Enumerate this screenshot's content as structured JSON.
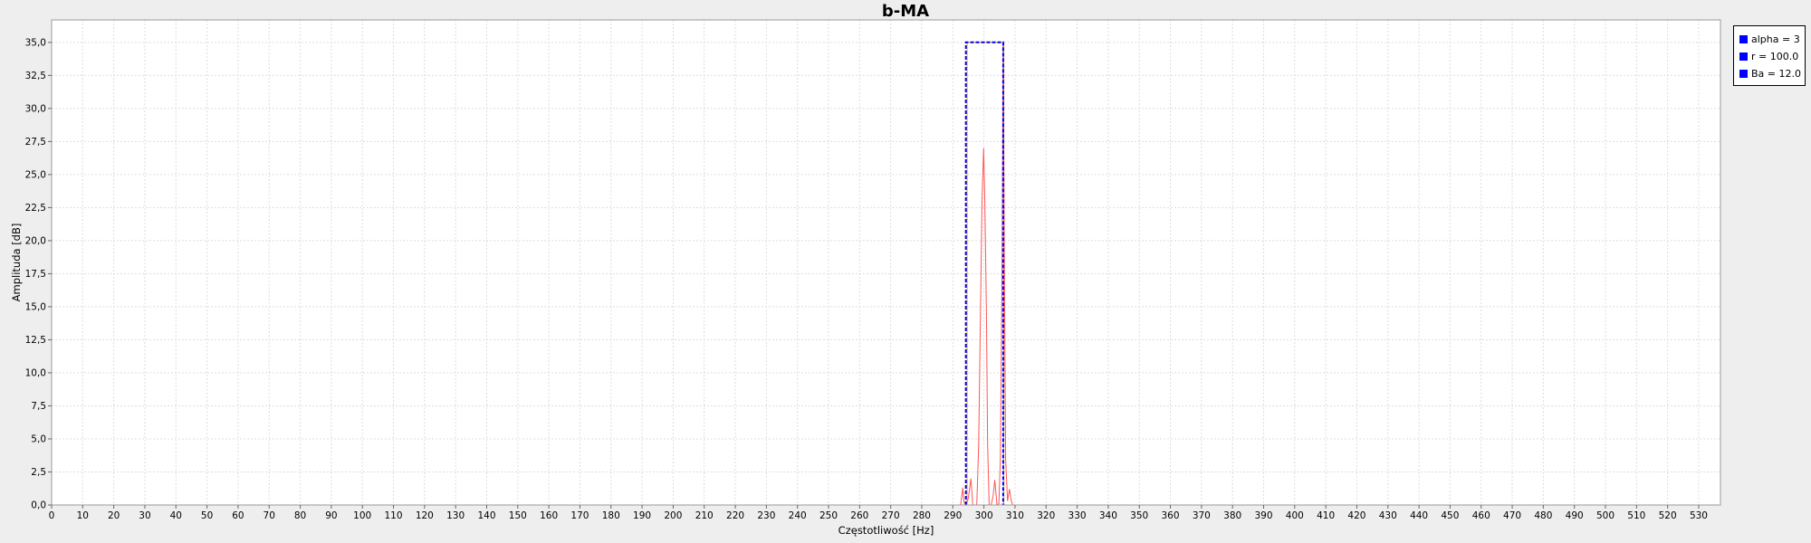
{
  "chart_data": {
    "type": "line",
    "title": "b-MA",
    "xlabel": "Częstotliwość [Hz]",
    "ylabel": "Amplituda [dB]",
    "xlim": [
      0,
      537
    ],
    "ylim": [
      0,
      36.7
    ],
    "x_ticks": [
      0,
      10,
      20,
      30,
      40,
      50,
      60,
      70,
      80,
      90,
      100,
      110,
      120,
      130,
      140,
      150,
      160,
      170,
      180,
      190,
      200,
      210,
      220,
      230,
      240,
      250,
      260,
      270,
      280,
      290,
      300,
      310,
      320,
      330,
      340,
      350,
      360,
      370,
      380,
      390,
      400,
      410,
      420,
      430,
      440,
      450,
      460,
      470,
      480,
      490,
      500,
      510,
      520,
      530
    ],
    "y_ticks": [
      "0,0",
      "2,5",
      "5,0",
      "7,5",
      "10,0",
      "12,5",
      "15,0",
      "17,5",
      "20,0",
      "22,5",
      "25,0",
      "27,5",
      "30,0",
      "32,5",
      "35,0"
    ],
    "grid": true,
    "legend_position": "right",
    "legend": [
      {
        "label": "alpha = 3",
        "color": "#0000ff"
      },
      {
        "label": "r = 100.0",
        "color": "#0000ff"
      },
      {
        "label": "Ba = 12.0",
        "color": "#0000ff"
      }
    ],
    "series": [
      {
        "color": "#ff5555",
        "style": "solid",
        "x": [
          292.5,
          293.2,
          293.6,
          294.2,
          295.0,
          295.8,
          296.4,
          297.0,
          297.7,
          298.3,
          298.9,
          299.4,
          299.9,
          300.3,
          300.8,
          301.2,
          301.7,
          302.3,
          302.9,
          303.5,
          304.2,
          304.8,
          305.3,
          305.8,
          306.2,
          306.6,
          307.0,
          307.6,
          308.2,
          308.8,
          309.3
        ],
        "y": [
          0.0,
          1.3,
          0.2,
          0.0,
          0.5,
          2.0,
          0.0,
          0.0,
          0.0,
          4.5,
          14.5,
          23.0,
          27.0,
          23.0,
          14.5,
          4.5,
          0.0,
          0.0,
          0.6,
          1.9,
          0.0,
          0.1,
          3.5,
          17.0,
          35.0,
          17.0,
          3.5,
          0.3,
          1.2,
          0.3,
          0.0
        ]
      },
      {
        "color": "#0000ff",
        "style": "dashed",
        "x": [
          294.2,
          294.2,
          306.2,
          306.2
        ],
        "y": [
          0.0,
          35.0,
          35.0,
          0.0
        ]
      },
      {
        "color": "#ffb000",
        "style": "solid",
        "x": [
          294.6,
          294.6,
          306.4,
          306.4
        ],
        "y": [
          0.0,
          35.0,
          35.0,
          0.0
        ]
      }
    ]
  }
}
